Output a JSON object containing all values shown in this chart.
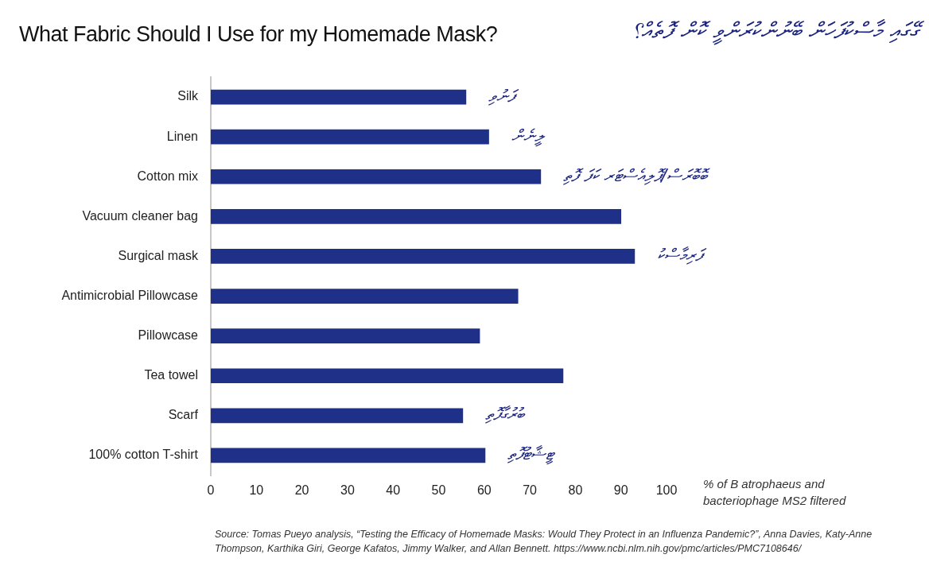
{
  "chart_data": {
    "type": "bar",
    "orientation": "horizontal",
    "title": "What Fabric Should I Use for my Homemade Mask?",
    "subtitle": "ގޭގައި މާސްކުފަހަން ބޭނުންކުރަންވީ ކޮން ފޮތެއް؟",
    "xlabel": "% of B atrophaeus and bacteriophage MS2 filtered",
    "categories": [
      "Silk",
      "Linen",
      "Cotton mix",
      "Vacuum cleaner bag",
      "Surgical mask",
      "Antimicrobial Pillowcase",
      "Pillowcase",
      "Tea towel",
      "Scarf",
      "100% cotton T-shirt"
    ],
    "values": [
      56,
      61,
      72.4,
      90,
      93,
      67.4,
      59,
      77.3,
      55.3,
      60.2
    ],
    "color": "#1f3088",
    "xlim": [
      0,
      100
    ],
    "xticks": [
      0,
      10,
      20,
      30,
      40,
      50,
      60,
      70,
      80,
      90,
      100
    ],
    "grid": false,
    "legend": false,
    "annotations": [
      {
        "text": "ފަނުވި",
        "x": 56,
        "y": "Silk"
      },
      {
        "text": "ލީނެން",
        "x": 61,
        "y": "Linen"
      },
      {
        "text": "ބޮބޮރަސް/ޕޮލިއެސްޓަރ ކަފަ ފޮތި",
        "x": 72.4,
        "y": "Cotton mix"
      },
      {
        "text": "ފަރިމާސްކު",
        "x": 93,
        "y": "Surgical mask"
      },
      {
        "text": "ބުރުގާފޮތި",
        "x": 55.3,
        "y": "Scarf"
      },
      {
        "text": "ޓީޝާޓުފޮތި",
        "x": 60.2,
        "y": "100% cotton T-shirt"
      },
      "Source: Tomas Pueyo analysis, “Testing the Efficacy of Homemade Masks: Would They Protect in an Influenza Pandemic?”, Anna Davies, Katy-Anne Thompson, Karthika Giri, George Kafatos, Jimmy Walker, and Allan Bennett. https://www.ncbi.nlm.nih.gov/pmc/articles/PMC7108646/"
    ]
  }
}
